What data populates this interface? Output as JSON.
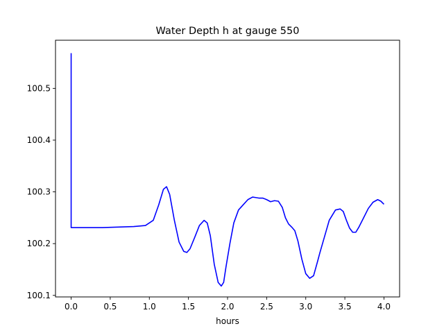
{
  "chart_data": {
    "type": "line",
    "title": "Water Depth h at gauge 550",
    "xlabel": "hours",
    "ylabel": "",
    "xlim": [
      -0.2,
      4.2
    ],
    "ylim": [
      100.097,
      100.593
    ],
    "xticks": [
      0.0,
      0.5,
      1.0,
      1.5,
      2.0,
      2.5,
      3.0,
      3.5,
      4.0
    ],
    "xtick_labels": [
      "0.0",
      "0.5",
      "1.0",
      "1.5",
      "2.0",
      "2.5",
      "3.0",
      "3.5",
      "4.0"
    ],
    "yticks": [
      100.1,
      100.2,
      100.3,
      100.4,
      100.5
    ],
    "ytick_labels": [
      "100.1",
      "100.2",
      "100.3",
      "100.4",
      "100.5"
    ],
    "grid": false,
    "series": [
      {
        "color": "#0000ff",
        "x": [
          0.0,
          0.0,
          0.0,
          0.2,
          0.4,
          0.6,
          0.8,
          0.95,
          1.05,
          1.12,
          1.18,
          1.22,
          1.26,
          1.32,
          1.38,
          1.44,
          1.48,
          1.52,
          1.58,
          1.64,
          1.7,
          1.74,
          1.78,
          1.83,
          1.88,
          1.92,
          1.95,
          1.98,
          2.03,
          2.08,
          2.14,
          2.2,
          2.26,
          2.32,
          2.36,
          2.4,
          2.45,
          2.5,
          2.55,
          2.6,
          2.65,
          2.7,
          2.74,
          2.78,
          2.82,
          2.86,
          2.9,
          2.95,
          3.0,
          3.05,
          3.1,
          3.15,
          3.18,
          3.22,
          3.3,
          3.38,
          3.44,
          3.48,
          3.52,
          3.56,
          3.6,
          3.64,
          3.68,
          3.74,
          3.8,
          3.86,
          3.92,
          3.96,
          4.0
        ],
        "values": [
          100.568,
          100.231,
          100.231,
          100.231,
          100.231,
          100.232,
          100.233,
          100.235,
          100.245,
          100.275,
          100.305,
          100.31,
          100.295,
          100.245,
          100.203,
          100.185,
          100.183,
          100.19,
          100.212,
          100.235,
          100.245,
          100.24,
          100.215,
          100.16,
          100.125,
          100.118,
          100.125,
          100.155,
          100.2,
          100.24,
          100.265,
          100.275,
          100.285,
          100.29,
          100.289,
          100.288,
          100.288,
          100.285,
          100.281,
          100.283,
          100.282,
          100.27,
          100.25,
          100.238,
          100.232,
          100.225,
          100.205,
          100.17,
          100.142,
          100.133,
          100.138,
          100.165,
          100.182,
          100.203,
          100.245,
          100.265,
          100.267,
          100.262,
          100.245,
          100.23,
          100.222,
          100.222,
          100.232,
          100.25,
          100.268,
          100.28,
          100.285,
          100.282,
          100.276
        ]
      }
    ]
  }
}
